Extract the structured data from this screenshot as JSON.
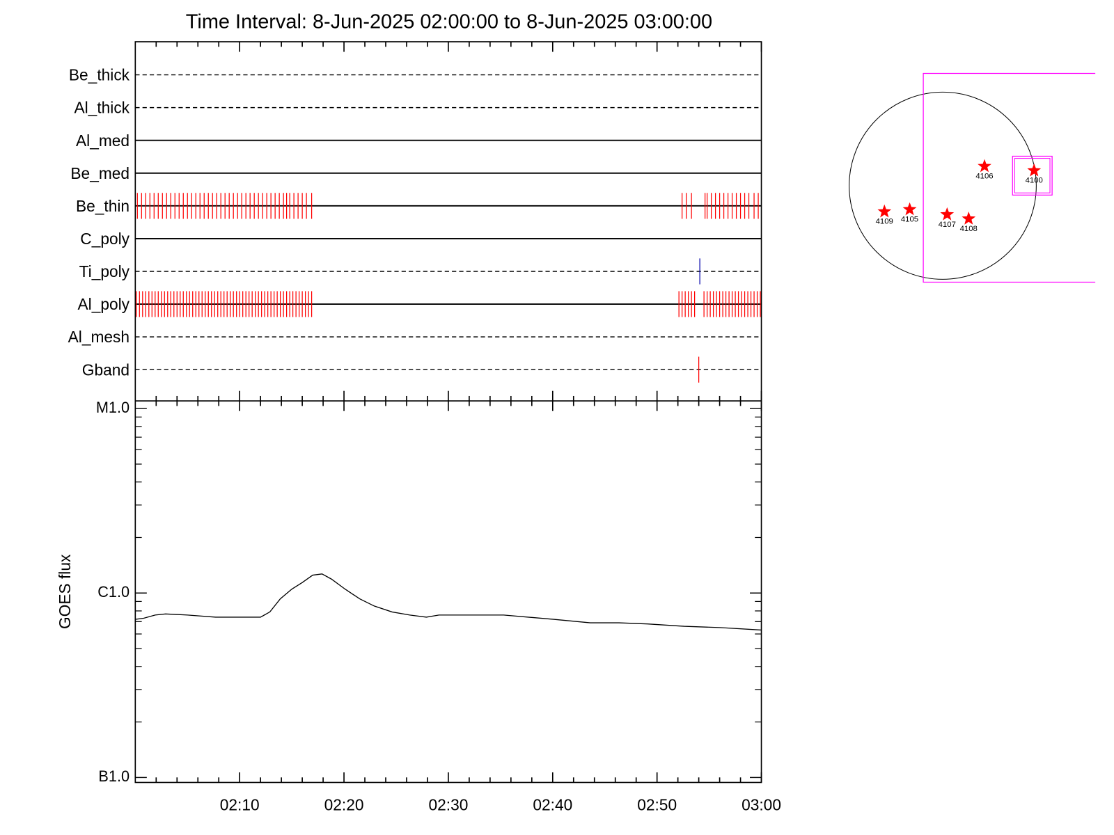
{
  "chart_data": [
    {
      "type": "timeline",
      "title": "Time Interval:  8-Jun-2025 02:00:00 to  8-Jun-2025 03:00:00",
      "xlim": [
        0,
        60
      ],
      "rows": [
        {
          "name": "Be_thick",
          "style": "dashed",
          "color": "#ff0000",
          "events": []
        },
        {
          "name": "Al_thick",
          "style": "dashed",
          "color": "#ff0000",
          "events": []
        },
        {
          "name": "Al_med",
          "style": "solid",
          "color": "#ff0000",
          "events": []
        },
        {
          "name": "Be_med",
          "style": "solid",
          "color": "#ff0000",
          "events": []
        },
        {
          "name": "Be_thin",
          "style": "solid",
          "color": "#ff0000",
          "events": [
            0.2,
            0.6,
            1.0,
            1.4,
            1.8,
            2.2,
            2.6,
            3.0,
            3.4,
            3.8,
            4.2,
            4.6,
            5.0,
            5.4,
            5.8,
            6.2,
            6.6,
            7.0,
            7.4,
            7.8,
            8.2,
            8.6,
            9.0,
            9.4,
            9.8,
            10.2,
            10.6,
            11.0,
            11.4,
            11.8,
            12.2,
            12.6,
            13.0,
            13.4,
            13.8,
            14.2,
            14.5,
            14.8,
            15.2,
            15.6,
            16.0,
            16.4,
            16.9,
            52.4,
            52.8,
            53.3,
            54.6,
            54.8,
            55.2,
            55.6,
            56.0,
            56.4,
            56.8,
            57.2,
            57.6,
            58.0,
            58.4,
            58.8,
            59.3,
            59.7
          ]
        },
        {
          "name": "C_poly",
          "style": "solid",
          "color": "#ff0000",
          "events": []
        },
        {
          "name": "Ti_poly",
          "style": "dashed",
          "color": "#0000aa",
          "events": [
            54.1
          ]
        },
        {
          "name": "Al_poly",
          "style": "solid",
          "color": "#ff0000",
          "events": [
            0.1,
            0.4,
            0.7,
            1.0,
            1.3,
            1.6,
            1.9,
            2.2,
            2.5,
            2.8,
            3.1,
            3.4,
            3.7,
            4.0,
            4.3,
            4.6,
            4.9,
            5.2,
            5.5,
            5.8,
            6.1,
            6.4,
            6.7,
            7.0,
            7.3,
            7.6,
            7.9,
            8.2,
            8.5,
            8.8,
            9.1,
            9.4,
            9.7,
            10.0,
            10.3,
            10.6,
            10.9,
            11.2,
            11.5,
            11.8,
            12.1,
            12.4,
            12.7,
            13.0,
            13.3,
            13.6,
            13.9,
            14.2,
            14.5,
            14.8,
            15.1,
            15.4,
            15.7,
            16.0,
            16.3,
            16.6,
            16.9,
            52.1,
            52.4,
            52.7,
            53.0,
            53.3,
            53.6,
            54.5,
            54.8,
            55.1,
            55.4,
            55.7,
            56.0,
            56.3,
            56.6,
            56.9,
            57.2,
            57.5,
            57.8,
            58.1,
            58.4,
            58.7,
            59.0,
            59.3,
            59.6,
            59.9
          ]
        },
        {
          "name": "Al_mesh",
          "style": "dashed",
          "color": "#ff0000",
          "events": []
        },
        {
          "name": "Gband",
          "style": "dashed",
          "color": "#ff0000",
          "events": [
            54.0
          ]
        }
      ]
    },
    {
      "type": "line",
      "ylabel": "GOES flux",
      "log_y": true,
      "color": "#000000",
      "xlim": [
        0,
        60
      ],
      "xticks": [
        {
          "value": 10,
          "label": "02:10"
        },
        {
          "value": 20,
          "label": "02:20"
        },
        {
          "value": 30,
          "label": "02:30"
        },
        {
          "value": 40,
          "label": "02:40"
        },
        {
          "value": 50,
          "label": "02:50"
        },
        {
          "value": 60,
          "label": "03:00"
        }
      ],
      "minor_xticks": [
        2,
        4,
        6,
        8,
        12,
        14,
        16,
        18,
        22,
        24,
        26,
        28,
        32,
        34,
        36,
        38,
        42,
        44,
        46,
        48,
        52,
        54,
        56,
        58
      ],
      "ylim": [
        9.4e-08,
        1.1e-05
      ],
      "yticks": [
        {
          "value": 1e-07,
          "label": "B1.0"
        },
        {
          "value": 1e-06,
          "label": "C1.0"
        },
        {
          "value": 1e-05,
          "label": "M1.0"
        }
      ],
      "minor_yticks": [
        2e-07,
        3e-07,
        4e-07,
        5e-07,
        6e-07,
        7e-07,
        8e-07,
        9e-07,
        2e-06,
        3e-06,
        4e-06,
        5e-06,
        6e-06,
        7e-06,
        8e-06,
        9e-06
      ],
      "x": [
        0,
        0.8,
        1.9,
        2.9,
        5,
        7.7,
        10.5,
        12,
        12.9,
        13.9,
        15,
        16,
        17,
        17.9,
        18.8,
        20.1,
        21.5,
        22.9,
        24.6,
        26.3,
        27.9,
        29.1,
        31.9,
        35.3,
        40.1,
        43.6,
        46.3,
        49.1,
        52.6,
        56,
        60
      ],
      "values": [
        7.2e-07,
        7.3e-07,
        7.6e-07,
        7.7e-07,
        7.6e-07,
        7.4e-07,
        7.4e-07,
        7.4e-07,
        7.9e-07,
        9.3e-07,
        1.05e-06,
        1.14e-06,
        1.25e-06,
        1.27e-06,
        1.19e-06,
        1.05e-06,
        9.3e-07,
        8.5e-07,
        7.9e-07,
        7.6e-07,
        7.4e-07,
        7.6e-07,
        7.6e-07,
        7.6e-07,
        7.2e-07,
        6.9e-07,
        6.9e-07,
        6.8e-07,
        6.6e-07,
        6.5e-07,
        6.3e-07
      ]
    },
    {
      "type": "scatter",
      "color": "#ff0000",
      "labels": [
        "4109",
        "4105",
        "4107",
        "4108",
        "4106",
        "4100"
      ],
      "x": [
        -589,
        -334,
        44,
        262,
        422,
        923
      ],
      "y": [
        -262,
        -240,
        -291,
        -334,
        196,
        153
      ]
    }
  ]
}
